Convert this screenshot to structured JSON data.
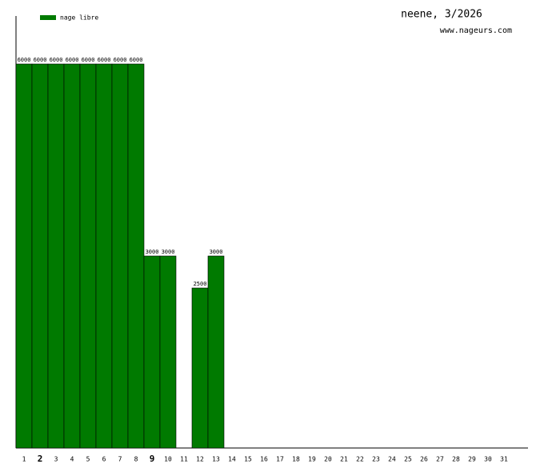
{
  "chart_data": {
    "type": "bar",
    "title": "neene, 3/2026",
    "subtitle": "www.nageurs.com",
    "categories": [
      "1",
      "2",
      "3",
      "4",
      "5",
      "6",
      "7",
      "8",
      "9",
      "10",
      "11",
      "12",
      "13",
      "14",
      "15",
      "16",
      "17",
      "18",
      "19",
      "20",
      "21",
      "22",
      "23",
      "24",
      "25",
      "26",
      "27",
      "28",
      "29",
      "30",
      "31"
    ],
    "series": [
      {
        "name": "nage libre",
        "color": "#007a00",
        "values": [
          6000,
          6000,
          6000,
          6000,
          6000,
          6000,
          6000,
          6000,
          3000,
          3000,
          null,
          2500,
          3000,
          null,
          null,
          null,
          null,
          null,
          null,
          null,
          null,
          null,
          null,
          null,
          null,
          null,
          null,
          null,
          null,
          null,
          null
        ]
      }
    ],
    "ylim": [
      0,
      6750
    ],
    "bold_categories": [
      1,
      8
    ],
    "legend": "top-left"
  }
}
